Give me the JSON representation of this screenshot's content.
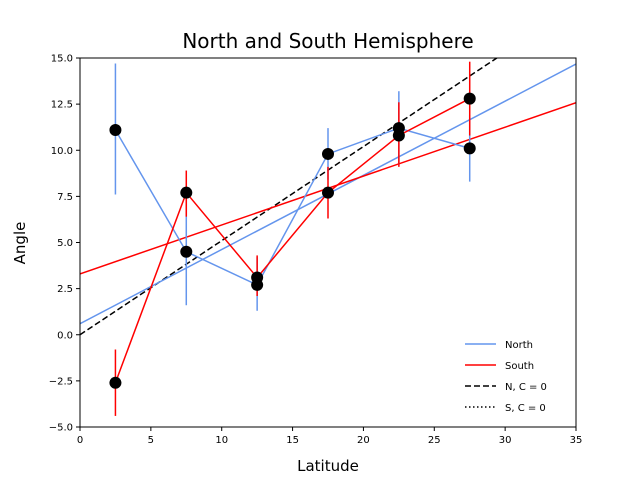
{
  "chart_data": {
    "type": "line",
    "title": "North and South Hemisphere",
    "xlabel": "Latitude",
    "ylabel": "Angle",
    "xlim": [
      0,
      35
    ],
    "ylim": [
      -5,
      15
    ],
    "xticks": [
      0,
      5,
      10,
      15,
      20,
      25,
      30,
      35
    ],
    "xtick_labels": [
      "0",
      "5",
      "10",
      "15",
      "20",
      "25",
      "30",
      "35"
    ],
    "yticks": [
      -5,
      -2.5,
      0,
      2.5,
      5,
      7.5,
      10,
      12.5,
      15
    ],
    "ytick_labels": [
      "−5.0",
      "−2.5",
      "0.0",
      "2.5",
      "5.0",
      "7.5",
      "10.0",
      "12.5",
      "15.0"
    ],
    "grid": false,
    "legend_position": "lower-right",
    "series": [
      {
        "name": "North",
        "color": "#6495ed",
        "x": [
          2.5,
          7.5,
          12.5,
          17.5,
          22.5,
          27.5
        ],
        "y": [
          11.1,
          4.5,
          2.7,
          9.8,
          11.2,
          10.1
        ],
        "yerr_low": [
          7.6,
          1.6,
          1.3,
          8.4,
          9.2,
          8.3
        ],
        "yerr_high": [
          14.7,
          7.5,
          4.2,
          11.2,
          13.2,
          11.9
        ],
        "fit": {
          "slope": 0.402,
          "intercept": 0.6
        }
      },
      {
        "name": "South",
        "color": "#ff0000",
        "x": [
          2.5,
          7.5,
          12.5,
          17.5,
          22.5,
          27.5
        ],
        "y": [
          -2.6,
          7.7,
          3.1,
          7.7,
          10.8,
          12.8
        ],
        "yerr_low": [
          -4.4,
          6.4,
          2.1,
          6.3,
          9.1,
          10.8
        ],
        "yerr_high": [
          -0.8,
          8.9,
          4.3,
          9.1,
          12.6,
          14.8
        ],
        "fit": {
          "slope": 0.265,
          "intercept": 3.3
        }
      }
    ],
    "reference_lines": [
      {
        "name": "N, C = 0",
        "style": "dashed",
        "color": "#000000",
        "slope": 0.51,
        "intercept": 0
      },
      {
        "name": "S, C = 0",
        "style": "dotted",
        "color": "#000000"
      }
    ],
    "legend_entries": [
      {
        "label": "North",
        "color": "#6495ed",
        "style": "solid"
      },
      {
        "label": "South",
        "color": "#ff0000",
        "style": "solid"
      },
      {
        "label": "N, C = 0",
        "color": "#000000",
        "style": "dashed"
      },
      {
        "label": "S, C = 0",
        "color": "#000000",
        "style": "dotted"
      }
    ],
    "marker_color": "#000000"
  }
}
